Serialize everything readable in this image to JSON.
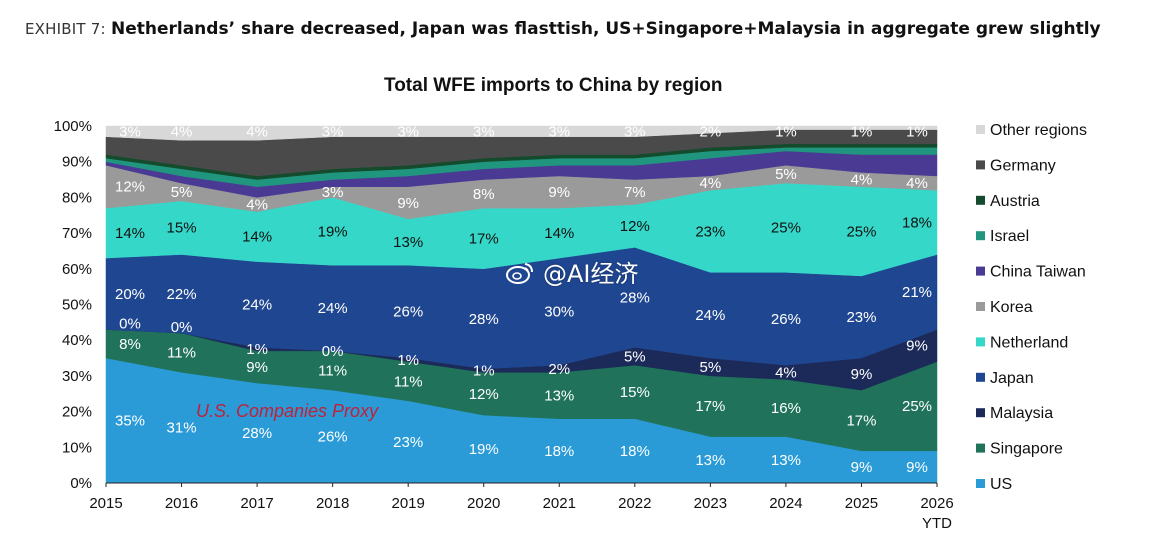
{
  "header": {
    "exhibit_label": "EXHIBIT 7:",
    "headline": "Netherlands’ share decreased, Japan was flasttish, US+Singapore+Malaysia in aggregate grew slightly"
  },
  "annotation": "U.S. Companies Proxy",
  "watermark": "@AI经济",
  "colors": {
    "US": "#2a9bd7",
    "Singapore": "#20735a",
    "Malaysia": "#1b2a58",
    "Japan": "#1f4690",
    "Netherland": "#35d8c8",
    "Korea": "#9a9a9a",
    "China Taiwan": "#4a3a94",
    "Israel": "#20967e",
    "Austria": "#134b2c",
    "Germany": "#4a4a4a",
    "Other regions": "#d8d8d8",
    "annotation": "#c0203a"
  },
  "chart_data": {
    "type": "area",
    "stacked": true,
    "normalized": true,
    "title": "Total WFE imports to China by region",
    "x_labels": [
      "2015",
      "2016",
      "2017",
      "2018",
      "2019",
      "2020",
      "2021",
      "2022",
      "2023",
      "2024",
      "2025",
      "2026"
    ],
    "x_sublabels": [
      "",
      "",
      "",
      "",
      "",
      "",
      "",
      "",
      "",
      "",
      "",
      "YTD"
    ],
    "ylim": [
      0,
      100
    ],
    "y_ticks": [
      "0%",
      "10%",
      "20%",
      "30%",
      "40%",
      "50%",
      "60%",
      "70%",
      "80%",
      "90%",
      "100%"
    ],
    "grid": false,
    "legend_position": "right",
    "series": [
      {
        "name": "US",
        "values": [
          35,
          31,
          28,
          26,
          23,
          19,
          18,
          18,
          13,
          13,
          9,
          9
        ],
        "labels": [
          "35%",
          "31%",
          "28%",
          "26%",
          "23%",
          "19%",
          "18%",
          "18%",
          "13%",
          "13%",
          "9%",
          "9%"
        ]
      },
      {
        "name": "Singapore",
        "values": [
          8,
          11,
          9,
          11,
          11,
          12,
          13,
          15,
          17,
          16,
          17,
          25
        ],
        "labels": [
          "8%",
          "11%",
          "9%",
          "11%",
          "11%",
          "12%",
          "13%",
          "15%",
          "17%",
          "16%",
          "17%",
          "25%"
        ]
      },
      {
        "name": "Malaysia",
        "values": [
          0,
          0,
          1,
          0,
          1,
          1,
          2,
          5,
          5,
          4,
          9,
          9
        ],
        "labels": [
          "0%",
          "0%",
          "1%",
          "0%",
          "1%",
          "1%",
          "2%",
          "5%",
          "5%",
          "4%",
          "9%",
          "9%"
        ]
      },
      {
        "name": "Japan",
        "values": [
          20,
          22,
          24,
          24,
          26,
          28,
          30,
          28,
          24,
          26,
          23,
          21
        ],
        "labels": [
          "20%",
          "22%",
          "24%",
          "24%",
          "26%",
          "28%",
          "30%",
          "28%",
          "24%",
          "26%",
          "23%",
          "21%"
        ]
      },
      {
        "name": "Netherland",
        "values": [
          14,
          15,
          14,
          19,
          13,
          17,
          14,
          12,
          23,
          25,
          25,
          18
        ],
        "labels": [
          "14%",
          "15%",
          "14%",
          "19%",
          "13%",
          "17%",
          "14%",
          "12%",
          "23%",
          "25%",
          "25%",
          "18%"
        ]
      },
      {
        "name": "Korea",
        "values": [
          12,
          5,
          4,
          3,
          9,
          8,
          9,
          7,
          4,
          5,
          4,
          4
        ],
        "labels": [
          "12%",
          "5%",
          "4%",
          "3%",
          "9%",
          "8%",
          "9%",
          "7%",
          "4%",
          "5%",
          "4%",
          "4%"
        ]
      },
      {
        "name": "China Taiwan",
        "values": [
          1,
          2,
          3,
          2,
          3,
          3,
          3,
          4,
          5,
          4,
          5,
          6
        ],
        "labels": []
      },
      {
        "name": "Israel",
        "values": [
          1,
          2,
          2,
          2,
          2,
          2,
          2,
          2,
          2,
          1,
          2,
          2
        ],
        "labels": []
      },
      {
        "name": "Austria",
        "values": [
          1,
          1,
          1,
          1,
          1,
          1,
          1,
          1,
          1,
          1,
          1,
          1
        ],
        "labels": []
      },
      {
        "name": "Germany",
        "values": [
          5,
          7,
          10,
          9,
          8,
          6,
          5,
          5,
          4,
          4,
          4,
          4
        ],
        "labels": []
      },
      {
        "name": "Other regions",
        "values": [
          3,
          4,
          4,
          3,
          3,
          3,
          3,
          3,
          2,
          1,
          1,
          1
        ],
        "labels": [
          "3%",
          "4%",
          "4%",
          "3%",
          "3%",
          "3%",
          "3%",
          "3%",
          "2%",
          "1%",
          "1%",
          "1%"
        ]
      }
    ],
    "legend_order": [
      "Other regions",
      "Germany",
      "Austria",
      "Israel",
      "China Taiwan",
      "Korea",
      "Netherland",
      "Japan",
      "Malaysia",
      "Singapore",
      "US"
    ]
  }
}
